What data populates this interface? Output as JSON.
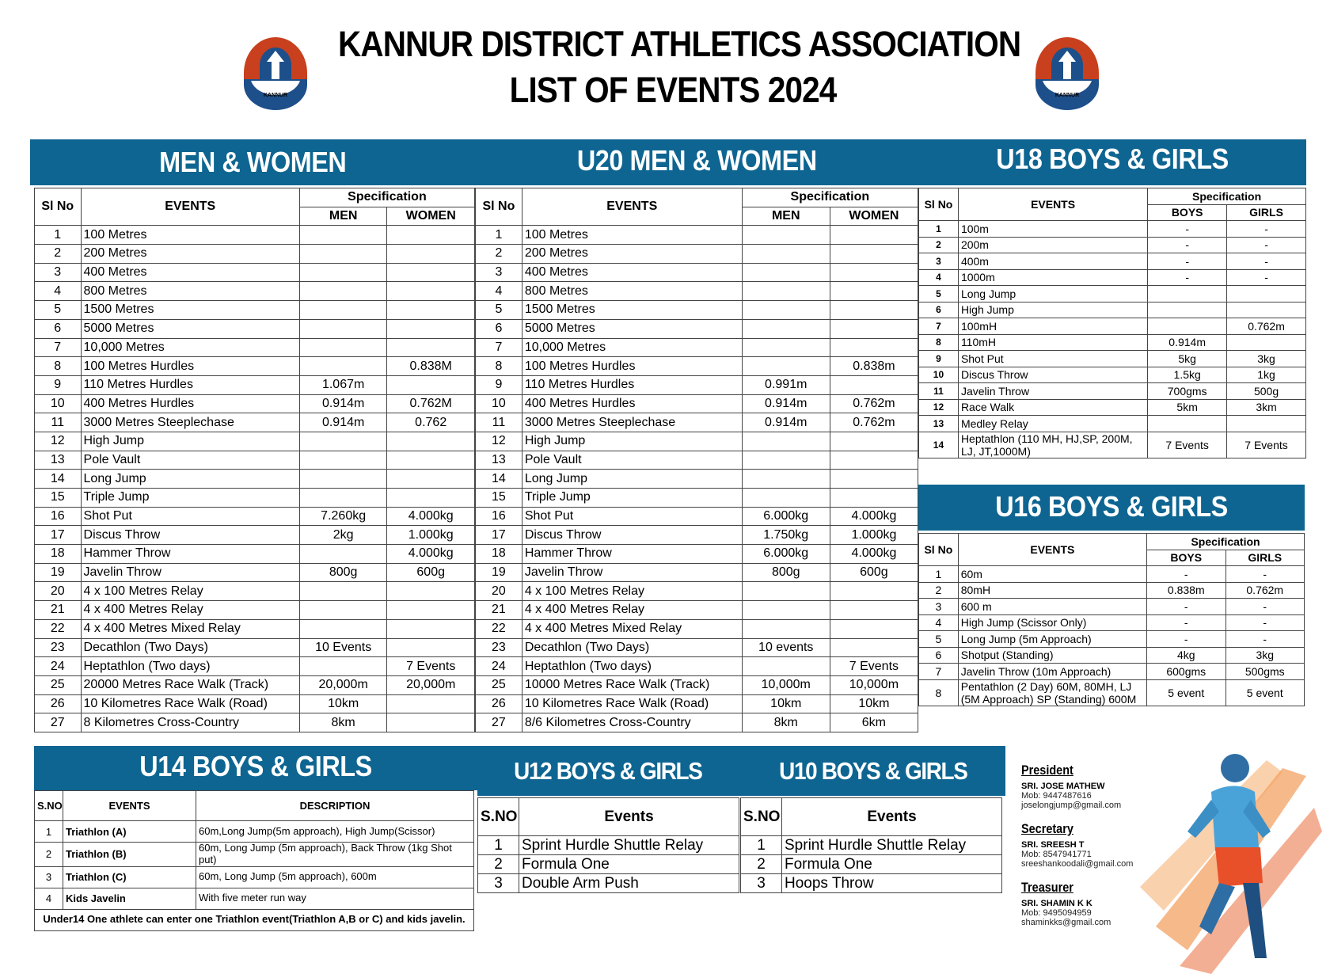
{
  "header": {
    "title_line1": "KANNUR DISTRICT ATHLETICS ASSOCIATION",
    "title_line2": "LIST OF EVENTS 2024",
    "logo_text": "KANNUR DISTRICT ATHLETICS ASSOCIATION",
    "logo_label": "KANNUR"
  },
  "colors": {
    "header_bar": "#0e6591",
    "logo_red": "#c8401e",
    "logo_blue": "#1d4f8a"
  },
  "men_women": {
    "title": "MEN & WOMEN",
    "headers": [
      "Sl No",
      "EVENTS",
      "Specification",
      "MEN",
      "WOMEN"
    ],
    "rows": [
      [
        "1",
        "100 Metres",
        "",
        ""
      ],
      [
        "2",
        "200 Metres",
        "",
        ""
      ],
      [
        "3",
        "400 Metres",
        "",
        ""
      ],
      [
        "4",
        "800 Metres",
        "",
        ""
      ],
      [
        "5",
        "1500 Metres",
        "",
        ""
      ],
      [
        "6",
        "5000 Metres",
        "",
        ""
      ],
      [
        "7",
        "10,000 Metres",
        "",
        ""
      ],
      [
        "8",
        "100 Metres Hurdles",
        "",
        "0.838M"
      ],
      [
        "9",
        "110 Metres Hurdles",
        "1.067m",
        ""
      ],
      [
        "10",
        "400 Metres Hurdles",
        "0.914m",
        "0.762M"
      ],
      [
        "11",
        "3000 Metres Steeplechase",
        "0.914m",
        "0.762"
      ],
      [
        "12",
        "High Jump",
        "",
        ""
      ],
      [
        "13",
        "Pole Vault",
        "",
        ""
      ],
      [
        "14",
        "Long Jump",
        "",
        ""
      ],
      [
        "15",
        "Triple Jump",
        "",
        ""
      ],
      [
        "16",
        "Shot Put",
        "7.260kg",
        "4.000kg"
      ],
      [
        "17",
        "Discus Throw",
        "2kg",
        "1.000kg"
      ],
      [
        "18",
        "Hammer Throw",
        "",
        "4.000kg"
      ],
      [
        "19",
        "Javelin Throw",
        "800g",
        "600g"
      ],
      [
        "20",
        "4 x 100 Metres Relay",
        "",
        ""
      ],
      [
        "21",
        "4 x 400 Metres Relay",
        "",
        ""
      ],
      [
        "22",
        "4 x 400 Metres Mixed Relay",
        "",
        ""
      ],
      [
        "23",
        "Decathlon (Two Days)",
        "10 Events",
        ""
      ],
      [
        "24",
        "Heptathlon (Two days)",
        "",
        "7 Events"
      ],
      [
        "25",
        "20000 Metres Race Walk (Track)",
        "20,000m",
        "20,000m"
      ],
      [
        "26",
        "10 Kilometres Race Walk (Road)",
        "10km",
        ""
      ],
      [
        "27",
        "8 Kilometres Cross-Country",
        "8km",
        ""
      ]
    ]
  },
  "u20": {
    "title": "U20 MEN & WOMEN",
    "headers": [
      "Sl No",
      "EVENTS",
      "Specification",
      "MEN",
      "WOMEN"
    ],
    "rows": [
      [
        "1",
        "100 Metres",
        "",
        ""
      ],
      [
        "2",
        "200 Metres",
        "",
        ""
      ],
      [
        "3",
        "400 Metres",
        "",
        ""
      ],
      [
        "4",
        "800 Metres",
        "",
        ""
      ],
      [
        "5",
        "1500 Metres",
        "",
        ""
      ],
      [
        "6",
        "5000 Metres",
        "",
        ""
      ],
      [
        "7",
        "10,000 Metres",
        "",
        ""
      ],
      [
        "8",
        "100 Metres Hurdles",
        "",
        "0.838m"
      ],
      [
        "9",
        "110 Metres Hurdles",
        "0.991m",
        ""
      ],
      [
        "10",
        "400 Metres Hurdles",
        "0.914m",
        "0.762m"
      ],
      [
        "11",
        "3000 Metres Steeplechase",
        "0.914m",
        "0.762m"
      ],
      [
        "12",
        "High Jump",
        "",
        ""
      ],
      [
        "13",
        "Pole Vault",
        "",
        ""
      ],
      [
        "14",
        "Long Jump",
        "",
        ""
      ],
      [
        "15",
        "Triple Jump",
        "",
        ""
      ],
      [
        "16",
        "Shot Put",
        "6.000kg",
        "4.000kg"
      ],
      [
        "17",
        "Discus Throw",
        "1.750kg",
        "1.000kg"
      ],
      [
        "18",
        "Hammer Throw",
        "6.000kg",
        "4.000kg"
      ],
      [
        "19",
        "Javelin Throw",
        "800g",
        "600g"
      ],
      [
        "20",
        "4 x 100 Metres Relay",
        "",
        ""
      ],
      [
        "21",
        "4 x 400 Metres Relay",
        "",
        ""
      ],
      [
        "22",
        "4 x 400 Metres Mixed Relay",
        "",
        ""
      ],
      [
        "23",
        "Decathlon (Two Days)",
        "10 events",
        ""
      ],
      [
        "24",
        "Heptathlon (Two days)",
        "",
        "7 Events"
      ],
      [
        "25",
        "10000 Metres Race Walk (Track)",
        "10,000m",
        "10,000m"
      ],
      [
        "26",
        "10 Kilometres Race Walk (Road)",
        "10km",
        "10km"
      ],
      [
        "27",
        "8/6 Kilometres Cross-Country",
        "8km",
        "6km"
      ]
    ]
  },
  "u18": {
    "title": "U18 BOYS & GIRLS",
    "headers": [
      "Sl No",
      "EVENTS",
      "Specification",
      "BOYS",
      "GIRLS"
    ],
    "rows": [
      [
        "1",
        "100m",
        "-",
        "-"
      ],
      [
        "2",
        "200m",
        "-",
        "-"
      ],
      [
        "3",
        "400m",
        "-",
        "-"
      ],
      [
        "4",
        "1000m",
        "-",
        "-"
      ],
      [
        "5",
        "Long Jump",
        "",
        ""
      ],
      [
        "6",
        "High Jump",
        "",
        ""
      ],
      [
        "7",
        "100mH",
        "",
        "0.762m"
      ],
      [
        "8",
        "110mH",
        "0.914m",
        ""
      ],
      [
        "9",
        "Shot Put",
        "5kg",
        "3kg"
      ],
      [
        "10",
        "Discus Throw",
        "1.5kg",
        "1kg"
      ],
      [
        "11",
        "Javelin Throw",
        "700gms",
        "500g"
      ],
      [
        "12",
        "Race Walk",
        "5km",
        "3km"
      ],
      [
        "13",
        "Medley Relay",
        "",
        ""
      ],
      [
        "14",
        "Heptathlon (110 MH, HJ,SP, 200M, LJ, JT,1000M)",
        "7 Events",
        "7 Events"
      ]
    ]
  },
  "u16": {
    "title": "U16 BOYS & GIRLS",
    "headers": [
      "Sl No",
      "EVENTS",
      "Specification",
      "BOYS",
      "GIRLS"
    ],
    "rows": [
      [
        "1",
        "60m",
        "-",
        "-"
      ],
      [
        "2",
        "80mH",
        "0.838m",
        "0.762m"
      ],
      [
        "3",
        "600 m",
        "-",
        "-"
      ],
      [
        "4",
        "High Jump (Scissor Only)",
        "-",
        "-"
      ],
      [
        "5",
        "Long Jump (5m Approach)",
        "-",
        "-"
      ],
      [
        "6",
        "Shotput (Standing)",
        "4kg",
        "3kg"
      ],
      [
        "7",
        "Javelin Throw (10m Approach)",
        "600gms",
        "500gms"
      ],
      [
        "8",
        "Pentathlon (2 Day) 60M, 80MH, LJ (5M Approach) SP (Standing) 600M",
        "5 event",
        "5 event"
      ]
    ]
  },
  "u14": {
    "title": "U14 BOYS & GIRLS",
    "headers": [
      "S.NO",
      "EVENTS",
      "DESCRIPTION"
    ],
    "rows": [
      [
        "1",
        "Triathlon (A)",
        "60m,Long Jump(5m approach), High Jump(Scissor)"
      ],
      [
        "2",
        "Triathlon (B)",
        "60m, Long Jump (5m approach), Back Throw (1kg Shot put)"
      ],
      [
        "3",
        "Triathlon (C)",
        "60m, Long Jump (5m approach), 600m"
      ],
      [
        "4",
        "Kids Javelin",
        "With five meter run way"
      ]
    ],
    "note": "Under14 One athlete can enter one Triathlon event(Triathlon A,B or C) and kids javelin."
  },
  "u12": {
    "title": "U12 BOYS & GIRLS",
    "headers": [
      "S.NO",
      "Events"
    ],
    "rows": [
      [
        "1",
        "Sprint Hurdle Shuttle Relay"
      ],
      [
        "2",
        "Formula One"
      ],
      [
        "3",
        "Double Arm Push"
      ]
    ]
  },
  "u10": {
    "title": "U10 BOYS & GIRLS",
    "headers": [
      "S.NO",
      "Events"
    ],
    "rows": [
      [
        "1",
        "Sprint Hurdle Shuttle Relay"
      ],
      [
        "2",
        "Formula One"
      ],
      [
        "3",
        "Hoops Throw"
      ]
    ]
  },
  "officials": [
    {
      "role": "President",
      "name": "SRI. JOSE MATHEW",
      "mob": "Mob: 9447487616",
      "email": "joselongjump@gmail.com"
    },
    {
      "role": "Secretary",
      "name": "SRI. SREESH T",
      "mob": "Mob: 8547941771",
      "email": "sreeshankoodali@gmail.com"
    },
    {
      "role": "Treasurer",
      "name": "SRI. SHAMIN K K",
      "mob": "Mob: 9495094959",
      "email": "shaminkks@gmail.com"
    }
  ]
}
